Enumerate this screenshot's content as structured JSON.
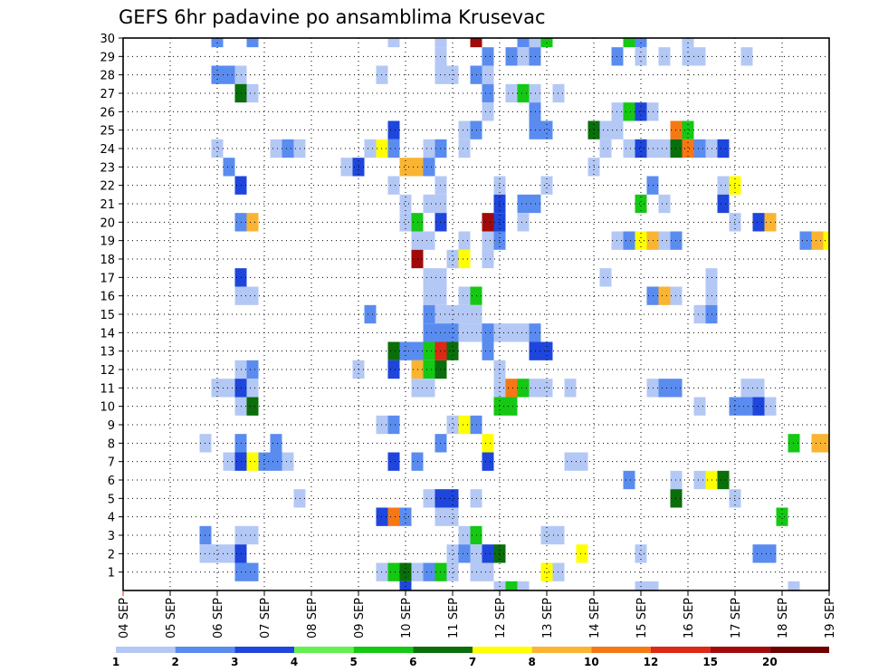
{
  "title": "GEFS 6hr padavine po ansamblima Krusevac",
  "chart_data": {
    "type": "heatmap",
    "title": "GEFS 6hr padavine po ansamblima Krusevac",
    "x_ticks": [
      "04 SEP",
      "05 SEP",
      "06 SEP",
      "07 SEP",
      "08 SEP",
      "09 SEP",
      "10 SEP",
      "11 SEP",
      "12 SEP",
      "13 SEP",
      "14 SEP",
      "15 SEP",
      "16 SEP",
      "17 SEP",
      "18 SEP",
      "19 SEP"
    ],
    "y_ticks": [
      "1",
      "2",
      "3",
      "4",
      "5",
      "6",
      "7",
      "8",
      "9",
      "10",
      "11",
      "12",
      "13",
      "14",
      "15",
      "16",
      "17",
      "18",
      "19",
      "20",
      "21",
      "22",
      "23",
      "24",
      "25",
      "26",
      "27",
      "28",
      "29",
      "30"
    ],
    "x_range": [
      "04 SEP",
      "19 SEP"
    ],
    "y_range": [
      1,
      30
    ],
    "grid": true,
    "time_steps": 60,
    "colorbar": {
      "labels": [
        "1",
        "2",
        "3",
        "4",
        "5",
        "6",
        "7",
        "8",
        "10",
        "12",
        "15",
        "20"
      ],
      "colors": [
        "#b4c8f5",
        "#5a8cf0",
        "#1e46dc",
        "#64f050",
        "#14c814",
        "#0a6e0a",
        "#ffff00",
        "#fab432",
        "#f57814",
        "#dc2814",
        "#a00a0a",
        "#6e0000"
      ]
    },
    "note": "cells: [member, time step (0 = 04 SEP 00z, 6h each), color class index]",
    "cells": [
      [
        30,
        8,
        1
      ],
      [
        30,
        11,
        1
      ],
      [
        30,
        23,
        0
      ],
      [
        30,
        27,
        0
      ],
      [
        30,
        30,
        10
      ],
      [
        30,
        34,
        1
      ],
      [
        30,
        35,
        0
      ],
      [
        30,
        36,
        4
      ],
      [
        30,
        43,
        4
      ],
      [
        30,
        44,
        1
      ],
      [
        30,
        48,
        0
      ],
      [
        29,
        27,
        0
      ],
      [
        29,
        31,
        1
      ],
      [
        29,
        33,
        1
      ],
      [
        29,
        34,
        0
      ],
      [
        29,
        35,
        1
      ],
      [
        29,
        42,
        1
      ],
      [
        29,
        44,
        0
      ],
      [
        29,
        46,
        0
      ],
      [
        29,
        48,
        0
      ],
      [
        29,
        49,
        0
      ],
      [
        29,
        53,
        0
      ],
      [
        28,
        8,
        1
      ],
      [
        28,
        9,
        1
      ],
      [
        28,
        10,
        0
      ],
      [
        28,
        22,
        0
      ],
      [
        28,
        27,
        0
      ],
      [
        28,
        28,
        0
      ],
      [
        28,
        30,
        1
      ],
      [
        28,
        31,
        0
      ],
      [
        27,
        10,
        5
      ],
      [
        27,
        11,
        0
      ],
      [
        27,
        31,
        1
      ],
      [
        27,
        33,
        0
      ],
      [
        27,
        34,
        4
      ],
      [
        27,
        35,
        0
      ],
      [
        27,
        37,
        0
      ],
      [
        26,
        31,
        0
      ],
      [
        26,
        35,
        1
      ],
      [
        26,
        42,
        0
      ],
      [
        26,
        43,
        4
      ],
      [
        26,
        44,
        2
      ],
      [
        26,
        45,
        0
      ],
      [
        25,
        23,
        2
      ],
      [
        25,
        29,
        0
      ],
      [
        25,
        30,
        1
      ],
      [
        25,
        35,
        1
      ],
      [
        25,
        36,
        1
      ],
      [
        25,
        40,
        5
      ],
      [
        25,
        41,
        0
      ],
      [
        25,
        42,
        0
      ],
      [
        25,
        47,
        8
      ],
      [
        25,
        48,
        4
      ],
      [
        24,
        8,
        0
      ],
      [
        24,
        13,
        0
      ],
      [
        24,
        14,
        1
      ],
      [
        24,
        15,
        0
      ],
      [
        24,
        21,
        0
      ],
      [
        24,
        22,
        6
      ],
      [
        24,
        23,
        1
      ],
      [
        24,
        26,
        0
      ],
      [
        24,
        27,
        1
      ],
      [
        24,
        29,
        0
      ],
      [
        24,
        41,
        0
      ],
      [
        24,
        43,
        0
      ],
      [
        24,
        44,
        2
      ],
      [
        24,
        45,
        0
      ],
      [
        24,
        46,
        0
      ],
      [
        24,
        47,
        5
      ],
      [
        24,
        48,
        8
      ],
      [
        24,
        49,
        1
      ],
      [
        24,
        50,
        0
      ],
      [
        24,
        51,
        2
      ],
      [
        23,
        9,
        1
      ],
      [
        23,
        19,
        0
      ],
      [
        23,
        20,
        2
      ],
      [
        23,
        24,
        7
      ],
      [
        23,
        25,
        7
      ],
      [
        23,
        26,
        1
      ],
      [
        23,
        40,
        0
      ],
      [
        22,
        10,
        2
      ],
      [
        22,
        23,
        0
      ],
      [
        22,
        27,
        0
      ],
      [
        22,
        32,
        0
      ],
      [
        22,
        36,
        0
      ],
      [
        22,
        45,
        1
      ],
      [
        22,
        51,
        0
      ],
      [
        22,
        52,
        6
      ],
      [
        21,
        24,
        0
      ],
      [
        21,
        26,
        0
      ],
      [
        21,
        27,
        0
      ],
      [
        21,
        32,
        2
      ],
      [
        21,
        34,
        1
      ],
      [
        21,
        35,
        1
      ],
      [
        21,
        44,
        4
      ],
      [
        21,
        46,
        0
      ],
      [
        21,
        51,
        2
      ],
      [
        20,
        10,
        1
      ],
      [
        20,
        11,
        7
      ],
      [
        20,
        24,
        0
      ],
      [
        20,
        25,
        4
      ],
      [
        20,
        27,
        2
      ],
      [
        20,
        31,
        10
      ],
      [
        20,
        32,
        2
      ],
      [
        20,
        34,
        0
      ],
      [
        20,
        52,
        0
      ],
      [
        20,
        54,
        2
      ],
      [
        20,
        55,
        7
      ],
      [
        19,
        25,
        0
      ],
      [
        19,
        26,
        0
      ],
      [
        19,
        29,
        0
      ],
      [
        19,
        31,
        0
      ],
      [
        19,
        32,
        1
      ],
      [
        19,
        42,
        0
      ],
      [
        19,
        43,
        1
      ],
      [
        19,
        44,
        6
      ],
      [
        19,
        45,
        7
      ],
      [
        19,
        46,
        0
      ],
      [
        19,
        47,
        1
      ],
      [
        19,
        58,
        1
      ],
      [
        19,
        59,
        7
      ],
      [
        19,
        60,
        6
      ],
      [
        18,
        25,
        10
      ],
      [
        18,
        28,
        0
      ],
      [
        18,
        29,
        6
      ],
      [
        18,
        31,
        0
      ],
      [
        17,
        10,
        2
      ],
      [
        17,
        26,
        0
      ],
      [
        17,
        27,
        0
      ],
      [
        17,
        41,
        0
      ],
      [
        17,
        50,
        0
      ],
      [
        16,
        10,
        0
      ],
      [
        16,
        11,
        0
      ],
      [
        16,
        26,
        0
      ],
      [
        16,
        27,
        0
      ],
      [
        16,
        29,
        0
      ],
      [
        16,
        30,
        4
      ],
      [
        16,
        45,
        1
      ],
      [
        16,
        46,
        7
      ],
      [
        16,
        47,
        0
      ],
      [
        16,
        50,
        0
      ],
      [
        15,
        21,
        1
      ],
      [
        15,
        26,
        1
      ],
      [
        15,
        27,
        0
      ],
      [
        15,
        28,
        0
      ],
      [
        15,
        29,
        0
      ],
      [
        15,
        30,
        0
      ],
      [
        15,
        49,
        0
      ],
      [
        15,
        50,
        1
      ],
      [
        14,
        26,
        1
      ],
      [
        14,
        27,
        1
      ],
      [
        14,
        28,
        1
      ],
      [
        14,
        29,
        0
      ],
      [
        14,
        30,
        0
      ],
      [
        14,
        31,
        1
      ],
      [
        14,
        32,
        0
      ],
      [
        14,
        33,
        0
      ],
      [
        14,
        34,
        0
      ],
      [
        14,
        35,
        1
      ],
      [
        13,
        23,
        5
      ],
      [
        13,
        24,
        1
      ],
      [
        13,
        25,
        1
      ],
      [
        13,
        26,
        4
      ],
      [
        13,
        27,
        9
      ],
      [
        13,
        28,
        5
      ],
      [
        13,
        31,
        1
      ],
      [
        13,
        35,
        2
      ],
      [
        13,
        36,
        2
      ],
      [
        12,
        10,
        0
      ],
      [
        12,
        11,
        1
      ],
      [
        12,
        20,
        0
      ],
      [
        12,
        23,
        2
      ],
      [
        12,
        25,
        7
      ],
      [
        12,
        26,
        4
      ],
      [
        12,
        27,
        5
      ],
      [
        12,
        32,
        0
      ],
      [
        11,
        8,
        0
      ],
      [
        11,
        9,
        0
      ],
      [
        11,
        10,
        2
      ],
      [
        11,
        11,
        0
      ],
      [
        11,
        25,
        0
      ],
      [
        11,
        26,
        0
      ],
      [
        11,
        32,
        0
      ],
      [
        11,
        33,
        8
      ],
      [
        11,
        34,
        4
      ],
      [
        11,
        35,
        0
      ],
      [
        11,
        36,
        0
      ],
      [
        11,
        38,
        0
      ],
      [
        11,
        45,
        0
      ],
      [
        11,
        46,
        1
      ],
      [
        11,
        47,
        1
      ],
      [
        11,
        53,
        0
      ],
      [
        11,
        54,
        0
      ],
      [
        10,
        10,
        0
      ],
      [
        10,
        11,
        5
      ],
      [
        10,
        32,
        4
      ],
      [
        10,
        33,
        4
      ],
      [
        10,
        49,
        0
      ],
      [
        10,
        52,
        1
      ],
      [
        10,
        53,
        1
      ],
      [
        10,
        54,
        2
      ],
      [
        10,
        55,
        0
      ],
      [
        9,
        22,
        0
      ],
      [
        9,
        23,
        1
      ],
      [
        9,
        28,
        0
      ],
      [
        9,
        29,
        6
      ],
      [
        9,
        30,
        1
      ],
      [
        8,
        7,
        0
      ],
      [
        8,
        10,
        1
      ],
      [
        8,
        13,
        1
      ],
      [
        8,
        27,
        1
      ],
      [
        8,
        31,
        6
      ],
      [
        8,
        57,
        4
      ],
      [
        8,
        59,
        7
      ],
      [
        8,
        60,
        7
      ],
      [
        7,
        9,
        0
      ],
      [
        7,
        10,
        2
      ],
      [
        7,
        11,
        6
      ],
      [
        7,
        12,
        1
      ],
      [
        7,
        13,
        1
      ],
      [
        7,
        14,
        0
      ],
      [
        7,
        23,
        2
      ],
      [
        7,
        25,
        1
      ],
      [
        7,
        31,
        2
      ],
      [
        7,
        38,
        0
      ],
      [
        7,
        39,
        0
      ],
      [
        6,
        43,
        1
      ],
      [
        6,
        47,
        0
      ],
      [
        6,
        49,
        0
      ],
      [
        6,
        50,
        6
      ],
      [
        6,
        51,
        5
      ],
      [
        5,
        15,
        0
      ],
      [
        5,
        26,
        0
      ],
      [
        5,
        27,
        2
      ],
      [
        5,
        28,
        2
      ],
      [
        5,
        30,
        0
      ],
      [
        5,
        47,
        5
      ],
      [
        5,
        52,
        0
      ],
      [
        4,
        22,
        2
      ],
      [
        4,
        23,
        8
      ],
      [
        4,
        24,
        1
      ],
      [
        4,
        27,
        0
      ],
      [
        4,
        28,
        0
      ],
      [
        4,
        56,
        4
      ],
      [
        3,
        7,
        1
      ],
      [
        3,
        10,
        0
      ],
      [
        3,
        11,
        0
      ],
      [
        3,
        29,
        0
      ],
      [
        3,
        30,
        4
      ],
      [
        3,
        36,
        0
      ],
      [
        3,
        37,
        0
      ],
      [
        2,
        7,
        0
      ],
      [
        2,
        8,
        0
      ],
      [
        2,
        9,
        0
      ],
      [
        2,
        10,
        2
      ],
      [
        2,
        28,
        0
      ],
      [
        2,
        29,
        1
      ],
      [
        2,
        30,
        0
      ],
      [
        2,
        31,
        2
      ],
      [
        2,
        32,
        5
      ],
      [
        2,
        39,
        6
      ],
      [
        2,
        44,
        0
      ],
      [
        2,
        54,
        1
      ],
      [
        2,
        55,
        1
      ],
      [
        1,
        10,
        1
      ],
      [
        1,
        11,
        1
      ],
      [
        1,
        22,
        0
      ],
      [
        1,
        23,
        4
      ],
      [
        1,
        24,
        5
      ],
      [
        1,
        25,
        0
      ],
      [
        1,
        26,
        1
      ],
      [
        1,
        27,
        4
      ],
      [
        1,
        28,
        0
      ],
      [
        1,
        30,
        0
      ],
      [
        1,
        31,
        0
      ],
      [
        1,
        36,
        6
      ],
      [
        1,
        37,
        0
      ],
      [
        0,
        24,
        2
      ],
      [
        0,
        32,
        0
      ],
      [
        0,
        33,
        4
      ],
      [
        0,
        34,
        0
      ],
      [
        0,
        44,
        0
      ],
      [
        0,
        45,
        0
      ],
      [
        0,
        57,
        0
      ]
    ]
  }
}
